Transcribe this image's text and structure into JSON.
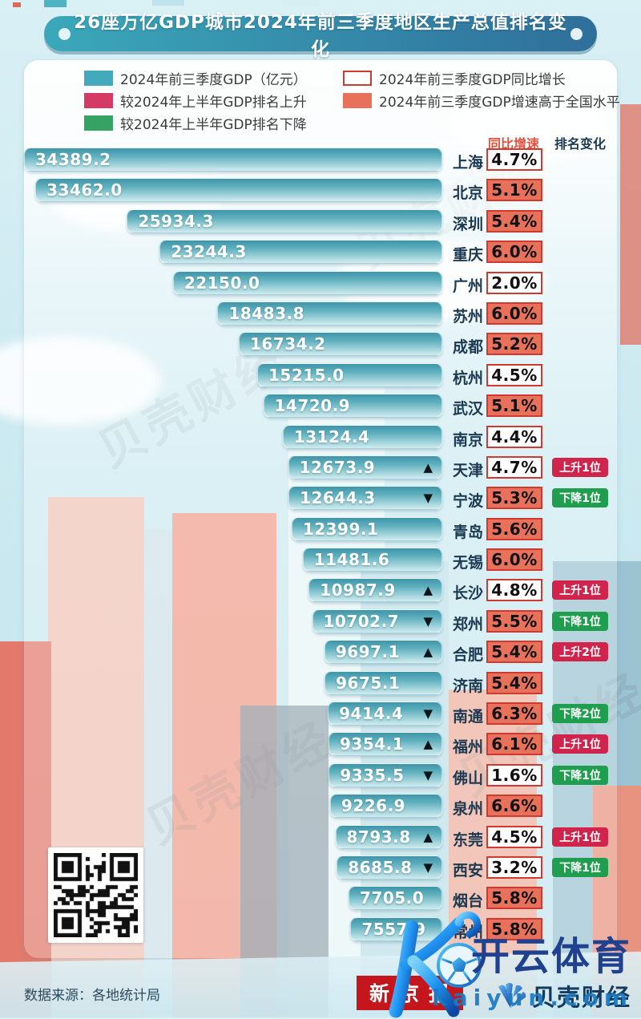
{
  "title": "26座万亿GDP城市2024年前三季度地区生产总值排名变化",
  "legend": {
    "left": [
      {
        "label": "2024年前三季度GDP（亿元）",
        "swatch": "teal"
      },
      {
        "label": "较2024年上半年GDP排名上升",
        "swatch": "crimson"
      },
      {
        "label": "较2024年上半年GDP排名下降",
        "swatch": "green"
      }
    ],
    "right": [
      {
        "label": "2024年前三季度GDP同比增长",
        "swatch": "outline"
      },
      {
        "label": "2024年前三季度GDP增速高于全国水平",
        "swatch": "salmon"
      }
    ]
  },
  "columns": {
    "growth": "同比增速",
    "rank": "排名变化"
  },
  "chart_data": {
    "type": "bar",
    "orientation": "horizontal",
    "title": "26座万亿GDP城市2024年前三季度地区生产总值排名变化",
    "unit": "亿元",
    "xlim": [
      0,
      34389.2
    ],
    "categories": [
      "上海",
      "北京",
      "深圳",
      "重庆",
      "广州",
      "苏州",
      "成都",
      "杭州",
      "武汉",
      "南京",
      "天津",
      "宁波",
      "青岛",
      "无锡",
      "长沙",
      "郑州",
      "合肥",
      "济南",
      "南通",
      "福州",
      "佛山",
      "泉州",
      "东莞",
      "西安",
      "烟台",
      "常州"
    ],
    "series": [
      {
        "name": "2024年前三季度GDP（亿元）",
        "values": [
          34389.2,
          33462.0,
          25934.3,
          23244.3,
          22150.0,
          18483.8,
          16734.2,
          15215.0,
          14720.9,
          13124.4,
          12673.9,
          12644.3,
          12399.1,
          11481.6,
          10987.9,
          10702.7,
          9697.1,
          9675.1,
          9414.4,
          9354.1,
          9335.5,
          9226.9,
          8793.8,
          8685.8,
          7705.0,
          7557.9
        ]
      }
    ],
    "rows": [
      {
        "city": "上海",
        "gdp": "34389.2",
        "value": 34389.2,
        "growth": "4.7%",
        "above_national": false,
        "arrow": null,
        "rank_change": null
      },
      {
        "city": "北京",
        "gdp": "33462.0",
        "value": 33462.0,
        "growth": "5.1%",
        "above_national": true,
        "arrow": null,
        "rank_change": null
      },
      {
        "city": "深圳",
        "gdp": "25934.3",
        "value": 25934.3,
        "growth": "5.4%",
        "above_national": true,
        "arrow": null,
        "rank_change": null
      },
      {
        "city": "重庆",
        "gdp": "23244.3",
        "value": 23244.3,
        "growth": "6.0%",
        "above_national": true,
        "arrow": null,
        "rank_change": null
      },
      {
        "city": "广州",
        "gdp": "22150.0",
        "value": 22150.0,
        "growth": "2.0%",
        "above_national": false,
        "arrow": null,
        "rank_change": null
      },
      {
        "city": "苏州",
        "gdp": "18483.8",
        "value": 18483.8,
        "growth": "6.0%",
        "above_national": true,
        "arrow": null,
        "rank_change": null
      },
      {
        "city": "成都",
        "gdp": "16734.2",
        "value": 16734.2,
        "growth": "5.2%",
        "above_national": true,
        "arrow": null,
        "rank_change": null
      },
      {
        "city": "杭州",
        "gdp": "15215.0",
        "value": 15215.0,
        "growth": "4.5%",
        "above_national": false,
        "arrow": null,
        "rank_change": null
      },
      {
        "city": "武汉",
        "gdp": "14720.9",
        "value": 14720.9,
        "growth": "5.1%",
        "above_national": true,
        "arrow": null,
        "rank_change": null
      },
      {
        "city": "南京",
        "gdp": "13124.4",
        "value": 13124.4,
        "growth": "4.4%",
        "above_national": false,
        "arrow": null,
        "rank_change": null
      },
      {
        "city": "天津",
        "gdp": "12673.9",
        "value": 12673.9,
        "growth": "4.7%",
        "above_national": false,
        "arrow": "up",
        "rank_change": {
          "text": "上升1位",
          "dir": "up"
        }
      },
      {
        "city": "宁波",
        "gdp": "12644.3",
        "value": 12644.3,
        "growth": "5.3%",
        "above_national": true,
        "arrow": "down",
        "rank_change": {
          "text": "下降1位",
          "dir": "down"
        }
      },
      {
        "city": "青岛",
        "gdp": "12399.1",
        "value": 12399.1,
        "growth": "5.6%",
        "above_national": true,
        "arrow": null,
        "rank_change": null
      },
      {
        "city": "无锡",
        "gdp": "11481.6",
        "value": 11481.6,
        "growth": "6.0%",
        "above_national": true,
        "arrow": null,
        "rank_change": null
      },
      {
        "city": "长沙",
        "gdp": "10987.9",
        "value": 10987.9,
        "growth": "4.8%",
        "above_national": false,
        "arrow": "up",
        "rank_change": {
          "text": "上升1位",
          "dir": "up"
        }
      },
      {
        "city": "郑州",
        "gdp": "10702.7",
        "value": 10702.7,
        "growth": "5.5%",
        "above_national": true,
        "arrow": "down",
        "rank_change": {
          "text": "下降1位",
          "dir": "down"
        }
      },
      {
        "city": "合肥",
        "gdp": "9697.1",
        "value": 9697.1,
        "growth": "5.4%",
        "above_national": true,
        "arrow": "up",
        "rank_change": {
          "text": "上升2位",
          "dir": "up"
        }
      },
      {
        "city": "济南",
        "gdp": "9675.1",
        "value": 9675.1,
        "growth": "5.4%",
        "above_national": true,
        "arrow": null,
        "rank_change": null
      },
      {
        "city": "南通",
        "gdp": "9414.4",
        "value": 9414.4,
        "growth": "6.3%",
        "above_national": true,
        "arrow": "down",
        "rank_change": {
          "text": "下降2位",
          "dir": "down"
        }
      },
      {
        "city": "福州",
        "gdp": "9354.1",
        "value": 9354.1,
        "growth": "6.1%",
        "above_national": true,
        "arrow": "up",
        "rank_change": {
          "text": "上升1位",
          "dir": "up"
        }
      },
      {
        "city": "佛山",
        "gdp": "9335.5",
        "value": 9335.5,
        "growth": "1.6%",
        "above_national": false,
        "arrow": "down",
        "rank_change": {
          "text": "下降1位",
          "dir": "down"
        }
      },
      {
        "city": "泉州",
        "gdp": "9226.9",
        "value": 9226.9,
        "growth": "6.6%",
        "above_national": true,
        "arrow": null,
        "rank_change": null
      },
      {
        "city": "东莞",
        "gdp": "8793.8",
        "value": 8793.8,
        "growth": "4.5%",
        "above_national": false,
        "arrow": "up",
        "rank_change": {
          "text": "上升1位",
          "dir": "up"
        }
      },
      {
        "city": "西安",
        "gdp": "8685.8",
        "value": 8685.8,
        "growth": "3.2%",
        "above_national": false,
        "arrow": "down",
        "rank_change": {
          "text": "下降1位",
          "dir": "down"
        }
      },
      {
        "city": "烟台",
        "gdp": "7705.0",
        "value": 7705.0,
        "growth": "5.8%",
        "above_national": true,
        "arrow": null,
        "rank_change": null
      },
      {
        "city": "常州",
        "gdp": "7557.9",
        "value": 7557.9,
        "growth": "5.8%",
        "above_national": true,
        "arrow": null,
        "rank_change": null
      }
    ],
    "legend_position": "top",
    "grid": false
  },
  "colors": {
    "bar_teal": "#47a2b3",
    "legend_teal": "#45a9bc",
    "legend_crimson": "#d43a64",
    "legend_green": "#35a364",
    "salmon": "#e8715c",
    "growth_border": "#cf3a30",
    "badge_up": "#d0244c",
    "badge_down": "#1f9e4f",
    "header_growth": "#e3503c",
    "header_rank": "#1c3a50",
    "title_gradient_start": "#3ba8ba",
    "title_gradient_end": "#2f6f9b",
    "newspaper_red": "#c4161c"
  },
  "footer": {
    "source": "数据来源：各地统计局",
    "newspaper": "新京报",
    "brand": "贝壳财经"
  },
  "watermark": {
    "site_name": "开云体育",
    "site_url": "kaiyun.com",
    "diagonal": "贝壳财经"
  }
}
